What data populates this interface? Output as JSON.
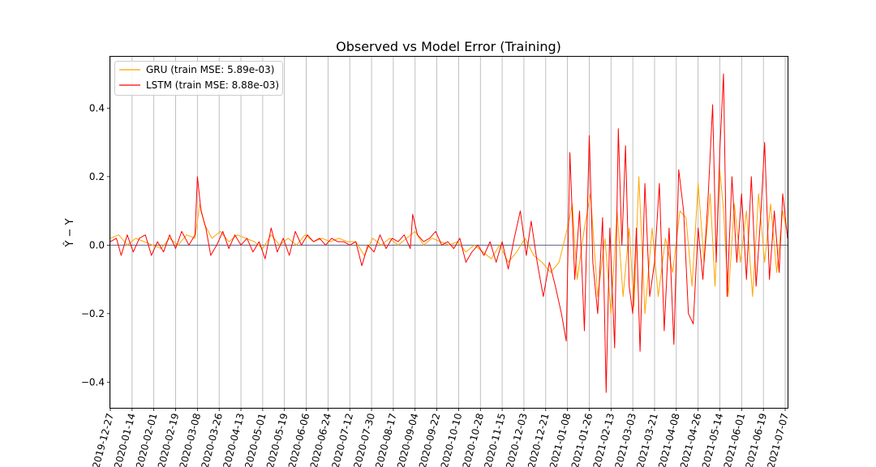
{
  "chart_data": {
    "type": "line",
    "title": "Observed vs Model Error (Training)",
    "xlabel": "",
    "ylabel": "Ŷ − Y",
    "x_start": "2019-12-27",
    "x_end": "2021-07-09",
    "x_ticks": [
      "2019-12-27",
      "2020-01-14",
      "2020-02-01",
      "2020-02-19",
      "2020-03-08",
      "2020-03-26",
      "2020-04-13",
      "2020-05-01",
      "2020-05-19",
      "2020-06-06",
      "2020-06-24",
      "2020-07-12",
      "2020-07-30",
      "2020-08-17",
      "2020-09-04",
      "2020-09-22",
      "2020-10-10",
      "2020-10-28",
      "2020-11-15",
      "2020-12-03",
      "2020-12-21",
      "2021-01-08",
      "2021-01-26",
      "2021-02-13",
      "2021-03-03",
      "2021-03-21",
      "2021-04-08",
      "2021-04-26",
      "2021-05-14",
      "2021-06-01",
      "2021-06-19",
      "2021-07-07"
    ],
    "y_ticks": [
      -0.4,
      -0.2,
      0.0,
      0.2,
      0.4
    ],
    "y_tick_labels": [
      "−0.4",
      "−0.2",
      "0.0",
      "0.2",
      "0.4"
    ],
    "ylim": [
      -0.475,
      0.55
    ],
    "grid": "vertical",
    "legend_position": "top-left",
    "series": [
      {
        "name": "GRU (train MSE: 5.89e-03)",
        "color": "#ffa500",
        "points": [
          [
            "2019-12-27",
            0.02
          ],
          [
            "2020-01-03",
            0.03
          ],
          [
            "2020-01-10",
            0.0
          ],
          [
            "2020-01-17",
            0.02
          ],
          [
            "2020-01-24",
            0.01
          ],
          [
            "2020-01-31",
            0.0
          ],
          [
            "2020-02-07",
            -0.01
          ],
          [
            "2020-02-14",
            0.02
          ],
          [
            "2020-02-21",
            0.0
          ],
          [
            "2020-02-28",
            0.03
          ],
          [
            "2020-03-06",
            0.02
          ],
          [
            "2020-03-10",
            0.12
          ],
          [
            "2020-03-14",
            0.06
          ],
          [
            "2020-03-20",
            0.02
          ],
          [
            "2020-03-27",
            0.04
          ],
          [
            "2020-04-03",
            0.01
          ],
          [
            "2020-04-10",
            0.03
          ],
          [
            "2020-04-17",
            0.02
          ],
          [
            "2020-04-24",
            0.01
          ],
          [
            "2020-05-01",
            -0.01
          ],
          [
            "2020-05-08",
            0.03
          ],
          [
            "2020-05-15",
            0.0
          ],
          [
            "2020-05-22",
            0.02
          ],
          [
            "2020-05-29",
            0.0
          ],
          [
            "2020-06-05",
            0.03
          ],
          [
            "2020-06-12",
            0.01
          ],
          [
            "2020-06-19",
            0.02
          ],
          [
            "2020-06-26",
            0.01
          ],
          [
            "2020-07-03",
            0.02
          ],
          [
            "2020-07-10",
            0.01
          ],
          [
            "2020-07-17",
            0.01
          ],
          [
            "2020-07-24",
            -0.03
          ],
          [
            "2020-07-31",
            0.02
          ],
          [
            "2020-08-07",
            0.0
          ],
          [
            "2020-08-14",
            0.02
          ],
          [
            "2020-08-21",
            0.0
          ],
          [
            "2020-08-28",
            0.02
          ],
          [
            "2020-09-04",
            0.04
          ],
          [
            "2020-09-11",
            0.0
          ],
          [
            "2020-09-18",
            0.02
          ],
          [
            "2020-09-25",
            0.01
          ],
          [
            "2020-10-02",
            0.0
          ],
          [
            "2020-10-09",
            0.01
          ],
          [
            "2020-10-16",
            -0.02
          ],
          [
            "2020-10-23",
            0.0
          ],
          [
            "2020-10-30",
            -0.02
          ],
          [
            "2020-11-06",
            -0.04
          ],
          [
            "2020-11-13",
            0.0
          ],
          [
            "2020-11-20",
            -0.05
          ],
          [
            "2020-11-27",
            -0.02
          ],
          [
            "2020-12-04",
            0.02
          ],
          [
            "2020-12-11",
            -0.03
          ],
          [
            "2020-12-18",
            -0.05
          ],
          [
            "2020-12-25",
            -0.08
          ],
          [
            "2021-01-01",
            -0.05
          ],
          [
            "2021-01-08",
            0.05
          ],
          [
            "2021-01-12",
            0.12
          ],
          [
            "2021-01-16",
            -0.1
          ],
          [
            "2021-01-22",
            0.05
          ],
          [
            "2021-01-27",
            0.15
          ],
          [
            "2021-02-02",
            -0.15
          ],
          [
            "2021-02-08",
            0.02
          ],
          [
            "2021-02-13",
            -0.2
          ],
          [
            "2021-02-18",
            0.1
          ],
          [
            "2021-02-23",
            -0.15
          ],
          [
            "2021-02-28",
            0.05
          ],
          [
            "2021-03-04",
            -0.18
          ],
          [
            "2021-03-08",
            0.2
          ],
          [
            "2021-03-13",
            -0.2
          ],
          [
            "2021-03-19",
            0.05
          ],
          [
            "2021-03-24",
            -0.15
          ],
          [
            "2021-03-30",
            0.02
          ],
          [
            "2021-04-05",
            -0.08
          ],
          [
            "2021-04-11",
            0.1
          ],
          [
            "2021-04-16",
            0.08
          ],
          [
            "2021-04-21",
            -0.12
          ],
          [
            "2021-04-26",
            0.18
          ],
          [
            "2021-05-01",
            -0.05
          ],
          [
            "2021-05-06",
            0.15
          ],
          [
            "2021-05-10",
            -0.12
          ],
          [
            "2021-05-14",
            0.22
          ],
          [
            "2021-05-17",
            0.1
          ],
          [
            "2021-05-21",
            -0.15
          ],
          [
            "2021-05-26",
            0.12
          ],
          [
            "2021-05-31",
            -0.05
          ],
          [
            "2021-06-05",
            0.1
          ],
          [
            "2021-06-10",
            -0.15
          ],
          [
            "2021-06-15",
            0.15
          ],
          [
            "2021-06-20",
            -0.05
          ],
          [
            "2021-06-25",
            0.12
          ],
          [
            "2021-06-30",
            -0.08
          ],
          [
            "2021-07-05",
            0.1
          ],
          [
            "2021-07-09",
            0.03
          ]
        ]
      },
      {
        "name": "LSTM (train MSE: 8.88e-03)",
        "color": "#ff0000",
        "points": [
          [
            "2019-12-27",
            0.01
          ],
          [
            "2020-01-01",
            0.02
          ],
          [
            "2020-01-05",
            -0.03
          ],
          [
            "2020-01-10",
            0.03
          ],
          [
            "2020-01-15",
            -0.02
          ],
          [
            "2020-01-20",
            0.02
          ],
          [
            "2020-01-25",
            0.03
          ],
          [
            "2020-01-30",
            -0.03
          ],
          [
            "2020-02-04",
            0.01
          ],
          [
            "2020-02-09",
            -0.02
          ],
          [
            "2020-02-14",
            0.03
          ],
          [
            "2020-02-19",
            -0.01
          ],
          [
            "2020-02-24",
            0.04
          ],
          [
            "2020-03-01",
            0.0
          ],
          [
            "2020-03-06",
            0.03
          ],
          [
            "2020-03-08",
            0.2
          ],
          [
            "2020-03-11",
            0.1
          ],
          [
            "2020-03-15",
            0.05
          ],
          [
            "2020-03-19",
            -0.03
          ],
          [
            "2020-03-24",
            0.0
          ],
          [
            "2020-03-29",
            0.04
          ],
          [
            "2020-04-03",
            -0.01
          ],
          [
            "2020-04-08",
            0.03
          ],
          [
            "2020-04-13",
            0.0
          ],
          [
            "2020-04-18",
            0.02
          ],
          [
            "2020-04-23",
            -0.02
          ],
          [
            "2020-04-28",
            0.01
          ],
          [
            "2020-05-03",
            -0.04
          ],
          [
            "2020-05-08",
            0.05
          ],
          [
            "2020-05-13",
            -0.02
          ],
          [
            "2020-05-18",
            0.02
          ],
          [
            "2020-05-23",
            -0.03
          ],
          [
            "2020-05-28",
            0.04
          ],
          [
            "2020-06-02",
            0.0
          ],
          [
            "2020-06-07",
            0.03
          ],
          [
            "2020-06-12",
            0.01
          ],
          [
            "2020-06-17",
            0.02
          ],
          [
            "2020-06-22",
            0.0
          ],
          [
            "2020-06-27",
            0.02
          ],
          [
            "2020-07-02",
            0.01
          ],
          [
            "2020-07-07",
            0.01
          ],
          [
            "2020-07-12",
            0.0
          ],
          [
            "2020-07-17",
            0.01
          ],
          [
            "2020-07-22",
            -0.06
          ],
          [
            "2020-07-27",
            0.0
          ],
          [
            "2020-08-01",
            -0.02
          ],
          [
            "2020-08-06",
            0.03
          ],
          [
            "2020-08-11",
            -0.01
          ],
          [
            "2020-08-16",
            0.02
          ],
          [
            "2020-08-21",
            0.01
          ],
          [
            "2020-08-26",
            0.03
          ],
          [
            "2020-08-31",
            -0.01
          ],
          [
            "2020-09-02",
            0.09
          ],
          [
            "2020-09-06",
            0.03
          ],
          [
            "2020-09-11",
            0.01
          ],
          [
            "2020-09-16",
            0.02
          ],
          [
            "2020-09-21",
            0.04
          ],
          [
            "2020-09-26",
            0.0
          ],
          [
            "2020-10-01",
            0.01
          ],
          [
            "2020-10-06",
            -0.01
          ],
          [
            "2020-10-11",
            0.02
          ],
          [
            "2020-10-16",
            -0.05
          ],
          [
            "2020-10-21",
            -0.02
          ],
          [
            "2020-10-26",
            0.0
          ],
          [
            "2020-10-31",
            -0.03
          ],
          [
            "2020-11-05",
            0.01
          ],
          [
            "2020-11-10",
            -0.05
          ],
          [
            "2020-11-15",
            0.01
          ],
          [
            "2020-11-20",
            -0.07
          ],
          [
            "2020-11-25",
            0.02
          ],
          [
            "2020-11-30",
            0.1
          ],
          [
            "2020-12-05",
            -0.03
          ],
          [
            "2020-12-09",
            0.07
          ],
          [
            "2020-12-14",
            -0.05
          ],
          [
            "2020-12-19",
            -0.15
          ],
          [
            "2020-12-24",
            -0.05
          ],
          [
            "2020-12-29",
            -0.12
          ],
          [
            "2021-01-03",
            -0.2
          ],
          [
            "2021-01-07",
            -0.28
          ],
          [
            "2021-01-10",
            0.27
          ],
          [
            "2021-01-14",
            -0.1
          ],
          [
            "2021-01-18",
            0.1
          ],
          [
            "2021-01-22",
            -0.25
          ],
          [
            "2021-01-26",
            0.32
          ],
          [
            "2021-01-29",
            -0.05
          ],
          [
            "2021-02-02",
            -0.2
          ],
          [
            "2021-02-06",
            0.08
          ],
          [
            "2021-02-09",
            -0.43
          ],
          [
            "2021-02-12",
            0.05
          ],
          [
            "2021-02-16",
            -0.3
          ],
          [
            "2021-02-19",
            0.34
          ],
          [
            "2021-02-22",
            0.0
          ],
          [
            "2021-02-25",
            0.29
          ],
          [
            "2021-02-28",
            -0.12
          ],
          [
            "2021-03-03",
            -0.2
          ],
          [
            "2021-03-06",
            0.05
          ],
          [
            "2021-03-09",
            -0.31
          ],
          [
            "2021-03-13",
            0.18
          ],
          [
            "2021-03-17",
            -0.15
          ],
          [
            "2021-03-21",
            -0.05
          ],
          [
            "2021-03-25",
            0.18
          ],
          [
            "2021-03-29",
            -0.25
          ],
          [
            "2021-04-02",
            0.05
          ],
          [
            "2021-04-06",
            -0.29
          ],
          [
            "2021-04-10",
            0.22
          ],
          [
            "2021-04-14",
            0.1
          ],
          [
            "2021-04-18",
            -0.2
          ],
          [
            "2021-04-22",
            -0.23
          ],
          [
            "2021-04-26",
            0.05
          ],
          [
            "2021-04-30",
            -0.1
          ],
          [
            "2021-05-04",
            0.12
          ],
          [
            "2021-05-08",
            0.41
          ],
          [
            "2021-05-11",
            -0.05
          ],
          [
            "2021-05-14",
            0.28
          ],
          [
            "2021-05-17",
            0.5
          ],
          [
            "2021-05-20",
            -0.15
          ],
          [
            "2021-05-24",
            0.2
          ],
          [
            "2021-05-28",
            -0.05
          ],
          [
            "2021-06-01",
            0.15
          ],
          [
            "2021-06-05",
            -0.1
          ],
          [
            "2021-06-09",
            0.2
          ],
          [
            "2021-06-13",
            -0.12
          ],
          [
            "2021-06-17",
            0.1
          ],
          [
            "2021-06-20",
            0.3
          ],
          [
            "2021-06-24",
            -0.1
          ],
          [
            "2021-06-28",
            0.1
          ],
          [
            "2021-07-02",
            -0.08
          ],
          [
            "2021-07-05",
            0.15
          ],
          [
            "2021-07-09",
            0.02
          ]
        ]
      }
    ]
  }
}
